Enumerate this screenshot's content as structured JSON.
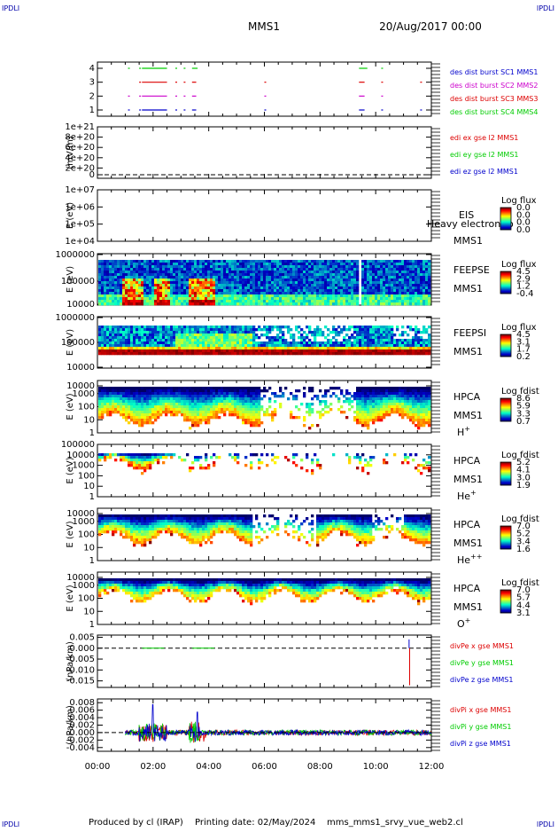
{
  "header": {
    "corner_tl": "IPDLI",
    "corner_tr": "IPDLI",
    "corner_bl": "IPDLI",
    "corner_br": "IPDLI",
    "mission": "MMS1",
    "datetime": "20/Aug/2017 00:00"
  },
  "footer": {
    "produced": "Produced by cl (IRAP)",
    "printing": "Printing date: 02/May/2024",
    "file": "mms_mms1_srvy_vue_web2.cl"
  },
  "colors": {
    "red": "#dd0000",
    "green": "#00cc00",
    "blue": "#0000cc",
    "magenta": "#cc00cc",
    "dark_blue": "#000088"
  },
  "chart_data": [
    {
      "type": "line",
      "name": "burst_availability",
      "yticks": [
        "1",
        "2",
        "3",
        "4"
      ],
      "legend": [
        {
          "text": "des dist burst SC1 MMS1",
          "color": "#0000cc"
        },
        {
          "text": "des dist burst SC2 MMS2",
          "color": "#cc00cc"
        },
        {
          "text": "des dist burst SC3 MMS3",
          "color": "#dd0000"
        },
        {
          "text": "des dist burst SC4 MMS4",
          "color": "#00cc00"
        }
      ],
      "series": [
        {
          "level": 4,
          "color": "#00cc00",
          "segments": [
            [
              1.1,
              1.15
            ],
            [
              1.5,
              1.55
            ],
            [
              1.6,
              2.5
            ],
            [
              2.8,
              2.85
            ],
            [
              3.1,
              3.15
            ],
            [
              3.4,
              3.6
            ],
            [
              9.4,
              9.7
            ],
            [
              10.2,
              10.25
            ]
          ]
        },
        {
          "level": 3,
          "color": "#dd0000",
          "segments": [
            [
              1.5,
              1.55
            ],
            [
              1.6,
              2.5
            ],
            [
              2.8,
              2.85
            ],
            [
              3.1,
              3.15
            ],
            [
              3.4,
              3.55
            ],
            [
              6.0,
              6.05
            ],
            [
              9.4,
              9.6
            ],
            [
              10.2,
              10.25
            ],
            [
              11.6,
              11.65
            ]
          ]
        },
        {
          "level": 2,
          "color": "#cc00cc",
          "segments": [
            [
              1.1,
              1.15
            ],
            [
              1.5,
              1.55
            ],
            [
              1.6,
              2.5
            ],
            [
              2.8,
              2.85
            ],
            [
              3.1,
              3.15
            ],
            [
              3.4,
              3.55
            ],
            [
              6.0,
              6.05
            ],
            [
              9.4,
              9.6
            ],
            [
              10.2,
              10.25
            ]
          ]
        },
        {
          "level": 1,
          "color": "#0000cc",
          "segments": [
            [
              1.1,
              1.15
            ],
            [
              1.5,
              1.55
            ],
            [
              1.6,
              2.5
            ],
            [
              2.8,
              2.85
            ],
            [
              3.1,
              3.15
            ],
            [
              3.4,
              3.55
            ],
            [
              6.0,
              6.05
            ],
            [
              9.4,
              9.6
            ],
            [
              10.2,
              10.25
            ],
            [
              11.6,
              11.65
            ]
          ]
        }
      ]
    },
    {
      "type": "line",
      "name": "edi_e_field",
      "ylabel": "(mV/m)",
      "yticks": [
        "0",
        "2e+20",
        "4e+20",
        "6e+20",
        "8e+20",
        "1e+21"
      ],
      "legend": [
        {
          "text": "edi ex gse l2 MMS1",
          "color": "#dd0000"
        },
        {
          "text": "edi ey gse l2 MMS1",
          "color": "#00cc00"
        },
        {
          "text": "edi ez gse l2 MMS1",
          "color": "#0000cc"
        }
      ]
    },
    {
      "type": "heatmap",
      "name": "eis",
      "ylabel": "E (eV)",
      "yticks": [
        "1e+04",
        "1e+05",
        "1e+06",
        "1e+07"
      ],
      "instrument": "EIS",
      "overlay": "Heavy electron to",
      "sc": "MMS1",
      "cb_title": "Log flux",
      "cb_ticks": [
        "0.0",
        "0.0",
        "0.0",
        "0.0"
      ]
    },
    {
      "type": "heatmap",
      "name": "feepse",
      "ylabel": "E (eV)",
      "yticks": [
        "10000",
        "100000",
        "1000000"
      ],
      "instrument": "FEEPSE",
      "sc": "MMS1",
      "cb_title": "Log flux",
      "cb_ticks": [
        "4.5",
        "2.9",
        "1.2",
        "-0.4"
      ]
    },
    {
      "type": "heatmap",
      "name": "feepsi",
      "ylabel": "E (eV)",
      "yticks": [
        "10000",
        "100000",
        "1000000"
      ],
      "instrument": "FEEPSI",
      "sc": "MMS1",
      "cb_title": "Log flux",
      "cb_ticks": [
        "4.5",
        "3.1",
        "1.7",
        "0.2"
      ]
    },
    {
      "type": "heatmap",
      "name": "hpca_h",
      "ylabel": "E (eV)",
      "yticks": [
        "1",
        "10",
        "100",
        "1000",
        "10000"
      ],
      "instrument": "HPCA",
      "sc": "MMS1",
      "species": "H",
      "species_sup": "+",
      "cb_title": "Log fdist",
      "cb_ticks": [
        "8.6",
        "5.9",
        "3.3",
        "0.7"
      ]
    },
    {
      "type": "heatmap",
      "name": "hpca_he",
      "ylabel": "E (eV)",
      "yticks": [
        "1",
        "10",
        "100",
        "1000",
        "10000",
        "100000"
      ],
      "instrument": "HPCA",
      "sc": "MMS1",
      "species": "He",
      "species_sup": "+",
      "cb_title": "Log fdist",
      "cb_ticks": [
        "5.2",
        "4.1",
        "3.0",
        "1.9"
      ]
    },
    {
      "type": "heatmap",
      "name": "hpca_hepp",
      "ylabel": "E (eV)",
      "yticks": [
        "1",
        "10",
        "100",
        "1000",
        "10000"
      ],
      "instrument": "HPCA",
      "sc": "MMS1",
      "species": "He",
      "species_sup": "++",
      "cb_title": "Log fdist",
      "cb_ticks": [
        "7.0",
        "5.2",
        "3.4",
        "1.6"
      ]
    },
    {
      "type": "heatmap",
      "name": "hpca_o",
      "ylabel": "E (eV)",
      "yticks": [
        "1",
        "10",
        "100",
        "1000",
        "10000"
      ],
      "instrument": "HPCA",
      "sc": "MMS1",
      "species": "O",
      "species_sup": "+",
      "cb_title": "Log fdist",
      "cb_ticks": [
        "7.0",
        "5.7",
        "4.4",
        "3.1"
      ]
    },
    {
      "type": "line",
      "name": "div_pe",
      "ylabel": "(nPa/km)",
      "yticks": [
        "-0.015",
        "-0.010",
        "-0.005",
        "0.000",
        "0.005"
      ],
      "ylim": [
        -0.018,
        0.006
      ],
      "legend": [
        {
          "text": "divPe x gse MMS1",
          "color": "#dd0000"
        },
        {
          "text": "divPe y gse MMS1",
          "color": "#00cc00"
        },
        {
          "text": "divPe z gse MMS1",
          "color": "#0000cc"
        }
      ]
    },
    {
      "type": "line",
      "name": "div_pi",
      "ylabel": "(nPa/km)",
      "yticks": [
        "-0.004",
        "-0.002",
        "0.000",
        "0.002",
        "0.004",
        "0.006",
        "0.008"
      ],
      "ylim": [
        -0.005,
        0.009
      ],
      "legend": [
        {
          "text": "divPi x gse MMS1",
          "color": "#dd0000"
        },
        {
          "text": "divPi y gse MMS1",
          "color": "#00cc00"
        },
        {
          "text": "divPi z gse MMS1",
          "color": "#0000cc"
        }
      ]
    }
  ],
  "x_axis": {
    "ticks": [
      "00:00",
      "02:00",
      "04:00",
      "06:00",
      "08:00",
      "10:00",
      "12:00"
    ],
    "range_hours": [
      0,
      12
    ]
  }
}
